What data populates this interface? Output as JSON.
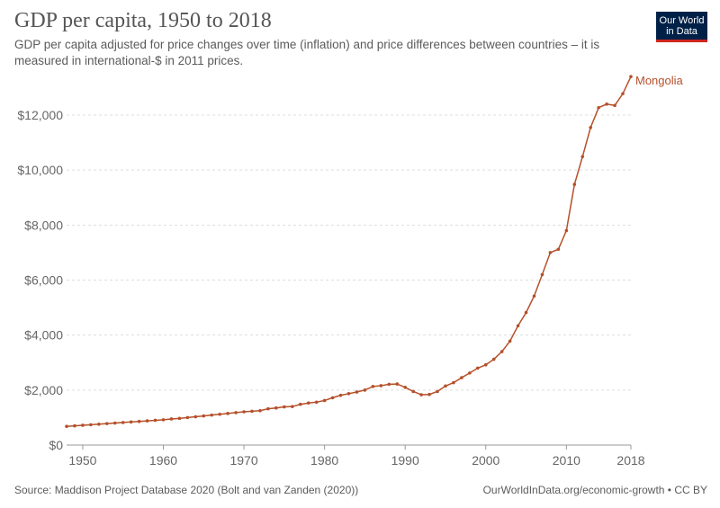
{
  "header": {
    "title": "GDP per capita, 1950 to 2018",
    "subtitle": "GDP per capita adjusted for price changes over time (inflation) and price differences between countries – it is measured in international-$ in 2011 prices."
  },
  "logo": {
    "line1": "Our World",
    "line2": "in Data"
  },
  "footer": {
    "source": "Source: Maddison Project Database 2020 (Bolt and van Zanden (2020))",
    "link": "OurWorldInData.org/economic-growth • CC BY"
  },
  "colors": {
    "series": "#b5502a",
    "grid": "#dddddd",
    "axis": "#666666"
  },
  "chart_data": {
    "type": "line",
    "title": "GDP per capita, 1950 to 2018",
    "xlabel": "",
    "ylabel": "",
    "xlim": [
      1948,
      2018
    ],
    "ylim": [
      0,
      13500
    ],
    "y_ticks": [
      0,
      2000,
      4000,
      6000,
      8000,
      10000,
      12000
    ],
    "y_tick_labels": [
      "$0",
      "$2,000",
      "$4,000",
      "$6,000",
      "$8,000",
      "$10,000",
      "$12,000"
    ],
    "x_ticks": [
      1950,
      1960,
      1970,
      1980,
      1990,
      2000,
      2010,
      2018
    ],
    "x_tick_labels": [
      "1950",
      "1960",
      "1970",
      "1980",
      "1990",
      "2000",
      "2010",
      "2018"
    ],
    "grid": true,
    "series": [
      {
        "name": "Mongolia",
        "x": [
          1948,
          1949,
          1950,
          1951,
          1952,
          1953,
          1954,
          1955,
          1956,
          1957,
          1958,
          1959,
          1960,
          1961,
          1962,
          1963,
          1964,
          1965,
          1966,
          1967,
          1968,
          1969,
          1970,
          1971,
          1972,
          1973,
          1974,
          1975,
          1976,
          1977,
          1978,
          1979,
          1980,
          1981,
          1982,
          1983,
          1984,
          1985,
          1986,
          1987,
          1988,
          1989,
          1990,
          1991,
          1992,
          1993,
          1994,
          1995,
          1996,
          1997,
          1998,
          1999,
          2000,
          2001,
          2002,
          2003,
          2004,
          2005,
          2006,
          2007,
          2008,
          2009,
          2010,
          2011,
          2012,
          2013,
          2014,
          2015,
          2016,
          2017,
          2018
        ],
        "values": [
          680,
          700,
          720,
          740,
          760,
          780,
          800,
          820,
          840,
          860,
          880,
          900,
          920,
          950,
          970,
          1000,
          1030,
          1060,
          1090,
          1120,
          1150,
          1180,
          1210,
          1230,
          1250,
          1320,
          1350,
          1390,
          1400,
          1480,
          1530,
          1560,
          1620,
          1720,
          1810,
          1870,
          1930,
          2000,
          2130,
          2160,
          2210,
          2220,
          2100,
          1950,
          1830,
          1840,
          1950,
          2150,
          2270,
          2450,
          2620,
          2800,
          2920,
          3120,
          3400,
          3780,
          4340,
          4820,
          5420,
          6200,
          7000,
          7120,
          7800,
          9480,
          10490,
          11550,
          12270,
          12400,
          12350,
          12780,
          13400
        ]
      }
    ]
  }
}
